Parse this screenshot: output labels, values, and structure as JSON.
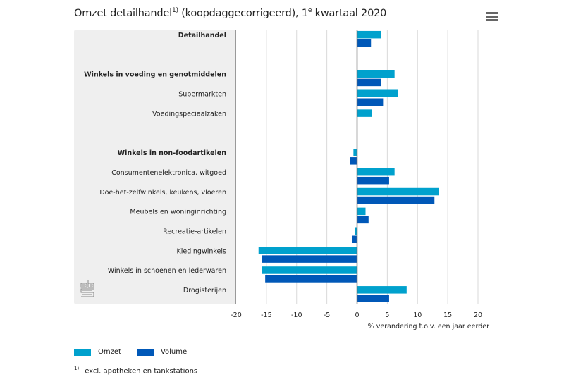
{
  "title": {
    "main": "Omzet detailhandel",
    "sup1": "1)",
    "rest": " (koopdaggecorrigeerd), 1",
    "sup2": "e",
    "tail": " kwartaal 2020"
  },
  "menu_icon": "hamburger-menu-icon",
  "logo": "cbs-logo",
  "colors": {
    "omzet": "#00a1cd",
    "volume": "#0058b8",
    "panel": "#efefef",
    "grid": "#d9d9d9",
    "zero_axis": "#666666"
  },
  "legend": [
    {
      "label": "Omzet",
      "color": "#00a1cd"
    },
    {
      "label": "Volume",
      "color": "#0058b8"
    }
  ],
  "footnote": {
    "marker": "1)",
    "text": "excl. apotheken en tankstations"
  },
  "chart_data": {
    "type": "bar",
    "orientation": "horizontal",
    "title": "Omzet detailhandel1) (koopdaggecorrigeerd), 1e kwartaal 2020",
    "xlabel": "% verandering t.o.v. een jaar eerder",
    "ylabel": "",
    "xlim": [
      -20,
      20
    ],
    "xticks": [
      -20,
      -15,
      -10,
      -5,
      0,
      5,
      10,
      15,
      20
    ],
    "grid": true,
    "legend_position": "bottom-left",
    "categories": [
      {
        "label": "Detailhandel",
        "bold": true
      },
      {
        "label": "",
        "bold": false,
        "spacer": true
      },
      {
        "label": "Winkels in voeding en genotmiddelen",
        "bold": true
      },
      {
        "label": "Supermarkten",
        "bold": false
      },
      {
        "label": "Voedingspeciaalzaken",
        "bold": false
      },
      {
        "label": "",
        "bold": false,
        "spacer": true
      },
      {
        "label": "Winkels in non-foodartikelen",
        "bold": true
      },
      {
        "label": "Consumentenelektronica, witgoed",
        "bold": false
      },
      {
        "label": "Doe-het-zelfwinkels, keukens, vloeren",
        "bold": false
      },
      {
        "label": "Meubels en woninginrichting",
        "bold": false
      },
      {
        "label": "Recreatie-artikelen",
        "bold": false
      },
      {
        "label": "Kledingwinkels",
        "bold": false
      },
      {
        "label": "Winkels in schoenen en lederwaren",
        "bold": false
      },
      {
        "label": "Drogisterijen",
        "bold": false
      }
    ],
    "series": [
      {
        "name": "Omzet",
        "color": "#00a1cd",
        "values": [
          4.0,
          null,
          6.2,
          6.8,
          2.4,
          null,
          -0.6,
          6.2,
          13.5,
          1.4,
          -0.3,
          -16.3,
          -15.7,
          8.2
        ]
      },
      {
        "name": "Volume",
        "color": "#0058b8",
        "values": [
          2.3,
          null,
          4.0,
          4.3,
          0.0,
          null,
          -1.2,
          5.3,
          12.8,
          1.9,
          -0.8,
          -15.8,
          -15.2,
          5.3
        ]
      }
    ]
  }
}
